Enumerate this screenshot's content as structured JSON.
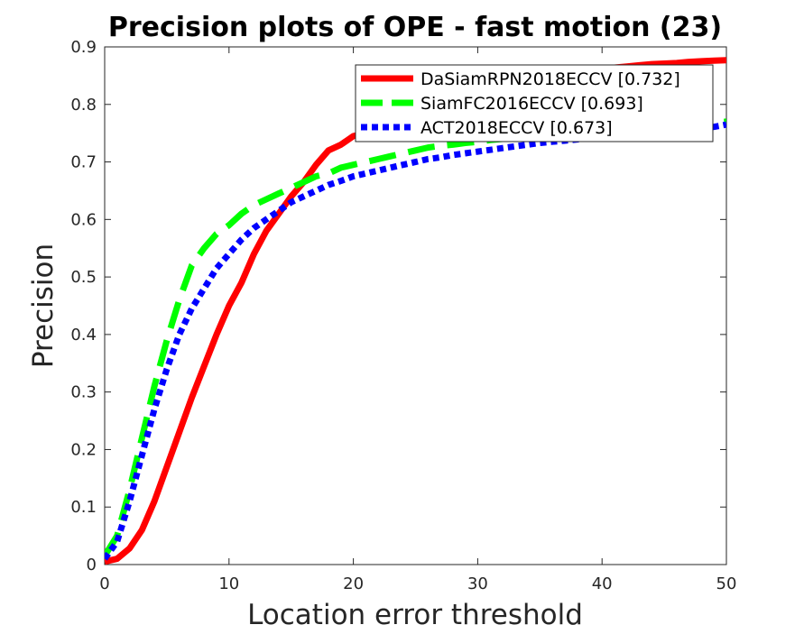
{
  "chart_data": {
    "type": "line",
    "title": "Precision plots of OPE - fast motion (23)",
    "xlabel": "Location error threshold",
    "ylabel": "Precision",
    "xlim": [
      0,
      50
    ],
    "ylim": [
      0,
      0.9
    ],
    "xticks": [
      "0",
      "10",
      "20",
      "30",
      "40",
      "50"
    ],
    "yticks": [
      "0",
      "0.1",
      "0.2",
      "0.3",
      "0.4",
      "0.5",
      "0.6",
      "0.7",
      "0.8",
      "0.9"
    ],
    "grid": false,
    "legend_position": "top-right",
    "x": [
      0,
      1,
      2,
      3,
      4,
      5,
      6,
      7,
      8,
      9,
      10,
      11,
      12,
      13,
      14,
      15,
      16,
      17,
      18,
      19,
      20,
      21,
      22,
      23,
      24,
      25,
      26,
      27,
      28,
      29,
      30,
      31,
      32,
      33,
      34,
      35,
      36,
      37,
      38,
      39,
      40,
      41,
      42,
      43,
      44,
      45,
      46,
      47,
      48,
      49,
      50
    ],
    "series": [
      {
        "name": "DaSiamRPN2018ECCV [0.732]",
        "color": "#ff0000",
        "style": "solid",
        "values": [
          0.005,
          0.01,
          0.028,
          0.06,
          0.11,
          0.17,
          0.23,
          0.29,
          0.345,
          0.4,
          0.45,
          0.49,
          0.54,
          0.58,
          0.61,
          0.64,
          0.665,
          0.695,
          0.72,
          0.73,
          0.745,
          0.75,
          0.76,
          0.77,
          0.78,
          0.79,
          0.8,
          0.81,
          0.815,
          0.82,
          0.825,
          0.83,
          0.835,
          0.84,
          0.845,
          0.85,
          0.853,
          0.856,
          0.858,
          0.86,
          0.862,
          0.864,
          0.866,
          0.868,
          0.87,
          0.871,
          0.872,
          0.874,
          0.875,
          0.876,
          0.877
        ]
      },
      {
        "name": "SiamFC2016ECCV [0.693]",
        "color": "#00ff00",
        "style": "dashed",
        "values": [
          0.015,
          0.05,
          0.13,
          0.22,
          0.31,
          0.39,
          0.46,
          0.52,
          0.55,
          0.575,
          0.59,
          0.61,
          0.625,
          0.635,
          0.645,
          0.655,
          0.665,
          0.675,
          0.68,
          0.69,
          0.695,
          0.7,
          0.705,
          0.71,
          0.715,
          0.72,
          0.725,
          0.728,
          0.73,
          0.733,
          0.735,
          0.738,
          0.74,
          0.742,
          0.744,
          0.746,
          0.748,
          0.75,
          0.752,
          0.754,
          0.755,
          0.757,
          0.758,
          0.76,
          0.761,
          0.762,
          0.764,
          0.765,
          0.767,
          0.768,
          0.77
        ]
      },
      {
        "name": "ACT2018ECCV [0.673]",
        "color": "#0000ff",
        "style": "dotted",
        "values": [
          0.01,
          0.04,
          0.11,
          0.19,
          0.27,
          0.34,
          0.4,
          0.445,
          0.48,
          0.515,
          0.54,
          0.565,
          0.585,
          0.6,
          0.615,
          0.63,
          0.64,
          0.65,
          0.66,
          0.667,
          0.675,
          0.68,
          0.685,
          0.69,
          0.695,
          0.7,
          0.705,
          0.708,
          0.712,
          0.715,
          0.718,
          0.721,
          0.724,
          0.727,
          0.73,
          0.733,
          0.735,
          0.737,
          0.739,
          0.741,
          0.743,
          0.745,
          0.747,
          0.749,
          0.751,
          0.753,
          0.755,
          0.757,
          0.759,
          0.761,
          0.765
        ]
      }
    ]
  }
}
